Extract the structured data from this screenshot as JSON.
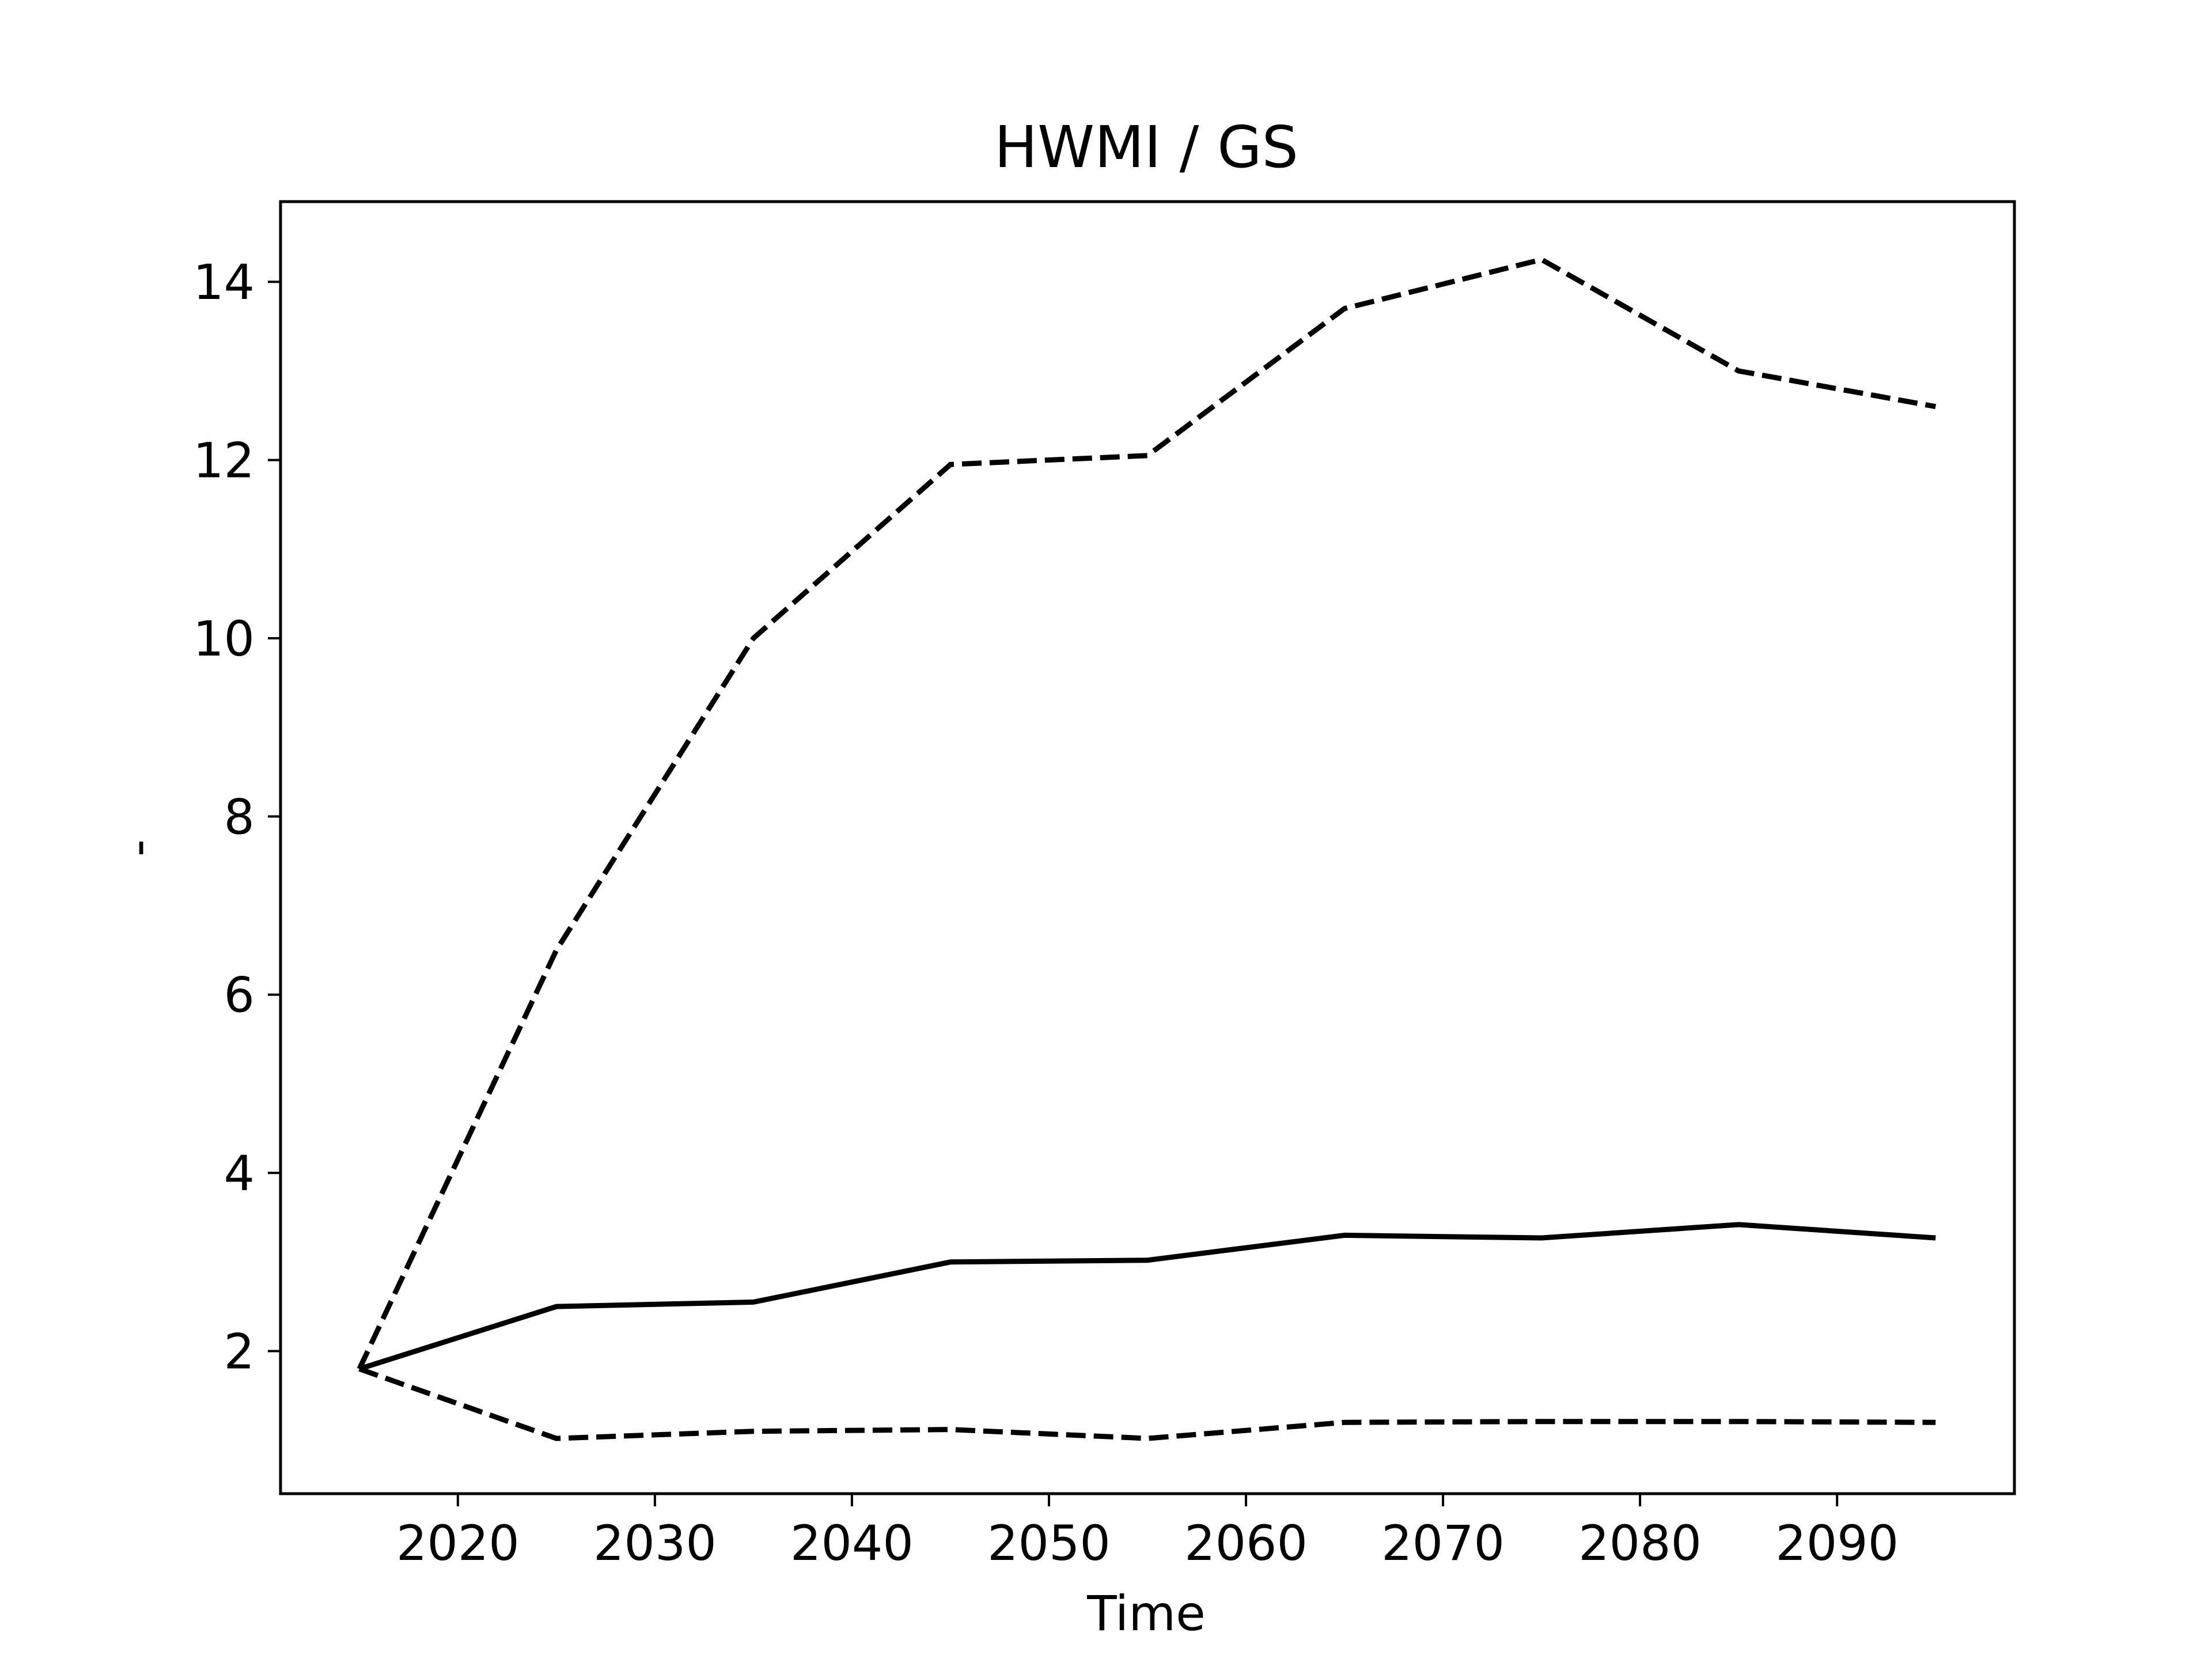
{
  "chart_data": {
    "type": "line",
    "title": "HWMI / GS",
    "xlabel": "Time",
    "ylabel": "-",
    "xlim": [
      2011,
      2099
    ],
    "ylim": [
      0.4,
      14.9
    ],
    "xticks": [
      2020,
      2030,
      2040,
      2050,
      2060,
      2070,
      2080,
      2090
    ],
    "yticks": [
      2,
      4,
      6,
      8,
      10,
      12,
      14
    ],
    "grid": false,
    "legend": "none",
    "x": [
      2015,
      2025,
      2035,
      2045,
      2055,
      2065,
      2075,
      2085,
      2095
    ],
    "series": [
      {
        "style": "dashed",
        "color": "#000000",
        "values": [
          1.8,
          6.5,
          10.0,
          11.95,
          12.05,
          13.7,
          14.25,
          13.0,
          12.6
        ]
      },
      {
        "style": "solid",
        "color": "#000000",
        "values": [
          1.8,
          2.5,
          2.55,
          3.0,
          3.02,
          3.3,
          3.27,
          3.42,
          3.27
        ]
      },
      {
        "style": "dashed",
        "color": "#000000",
        "values": [
          1.8,
          1.02,
          1.1,
          1.12,
          1.02,
          1.2,
          1.21,
          1.21,
          1.2
        ]
      }
    ]
  }
}
